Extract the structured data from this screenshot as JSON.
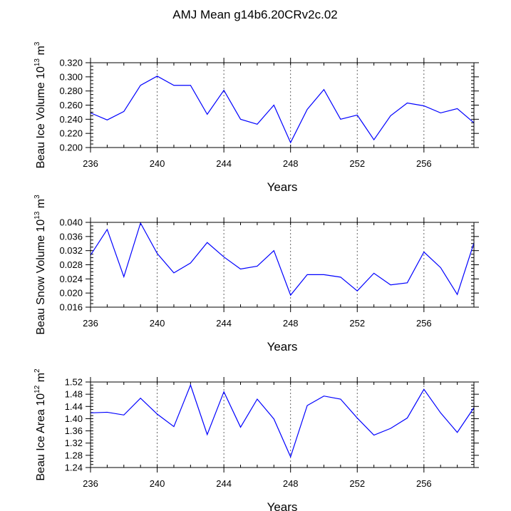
{
  "title": "AMJ Mean g14b6.20CRv2c.02",
  "chart_data": [
    {
      "type": "line",
      "ylabel_parts": [
        "Beau Ice Volume 10",
        "13",
        " m",
        "3"
      ],
      "xlabel": "Years",
      "xlim": [
        236,
        259
      ],
      "xticks": [
        236,
        240,
        244,
        248,
        252,
        256
      ],
      "ylim": [
        0.2,
        0.32
      ],
      "yticks": [
        "0.200",
        "0.220",
        "0.240",
        "0.260",
        "0.280",
        "0.300",
        "0.320"
      ],
      "ytick_values": [
        0.2,
        0.22,
        0.24,
        0.26,
        0.28,
        0.3,
        0.32
      ],
      "yminor": 0.005,
      "gridlines_x": [
        240,
        244,
        248,
        252,
        256
      ],
      "x": [
        236,
        237,
        238,
        239,
        240,
        241,
        242,
        243,
        244,
        245,
        246,
        247,
        248,
        249,
        250,
        251,
        252,
        253,
        254,
        255,
        256,
        257,
        258,
        259
      ],
      "y": [
        0.249,
        0.239,
        0.251,
        0.288,
        0.301,
        0.288,
        0.288,
        0.247,
        0.281,
        0.24,
        0.233,
        0.26,
        0.207,
        0.254,
        0.282,
        0.24,
        0.246,
        0.211,
        0.245,
        0.263,
        0.259,
        0.249,
        0.255,
        0.235
      ]
    },
    {
      "type": "line",
      "ylabel_parts": [
        "Beau Snow Volume 10",
        "13",
        " m",
        "3"
      ],
      "xlabel": "Years",
      "xlim": [
        236,
        259
      ],
      "xticks": [
        236,
        240,
        244,
        248,
        252,
        256
      ],
      "ylim": [
        0.016,
        0.04
      ],
      "yticks": [
        "0.016",
        "0.020",
        "0.024",
        "0.028",
        "0.032",
        "0.036",
        "0.040"
      ],
      "ytick_values": [
        0.016,
        0.02,
        0.024,
        0.028,
        0.032,
        0.036,
        0.04
      ],
      "yminor": 0.001,
      "gridlines_x": [
        240,
        244,
        248,
        252,
        256
      ],
      "x": [
        236,
        237,
        238,
        239,
        240,
        241,
        242,
        243,
        244,
        245,
        246,
        247,
        248,
        249,
        250,
        251,
        252,
        253,
        254,
        255,
        256,
        257,
        258,
        259
      ],
      "y": [
        0.0307,
        0.038,
        0.0246,
        0.0398,
        0.0312,
        0.0257,
        0.0285,
        0.0343,
        0.0302,
        0.0268,
        0.0276,
        0.032,
        0.0194,
        0.0252,
        0.0252,
        0.0245,
        0.0206,
        0.0256,
        0.0223,
        0.0229,
        0.0316,
        0.0272,
        0.0196,
        0.0342
      ]
    },
    {
      "type": "line",
      "ylabel_parts": [
        "Beau Ice Area 10",
        "12",
        " m",
        "2"
      ],
      "xlabel": "Years",
      "xlim": [
        236,
        259
      ],
      "xticks": [
        236,
        240,
        244,
        248,
        252,
        256
      ],
      "ylim": [
        1.24,
        1.52
      ],
      "yticks": [
        "1.24",
        "1.28",
        "1.32",
        "1.36",
        "1.40",
        "1.44",
        "1.48",
        "1.52"
      ],
      "ytick_values": [
        1.24,
        1.28,
        1.32,
        1.36,
        1.4,
        1.44,
        1.48,
        1.52
      ],
      "yminor": 0.01,
      "gridlines_x": [
        240,
        244,
        248,
        252,
        256
      ],
      "x": [
        236,
        237,
        238,
        239,
        240,
        241,
        242,
        243,
        244,
        245,
        246,
        247,
        248,
        249,
        250,
        251,
        252,
        253,
        254,
        255,
        256,
        257,
        258,
        259
      ],
      "y": [
        1.419,
        1.421,
        1.412,
        1.467,
        1.415,
        1.374,
        1.51,
        1.348,
        1.488,
        1.372,
        1.464,
        1.399,
        1.275,
        1.443,
        1.474,
        1.464,
        1.402,
        1.346,
        1.368,
        1.402,
        1.496,
        1.419,
        1.355,
        1.436
      ]
    }
  ]
}
